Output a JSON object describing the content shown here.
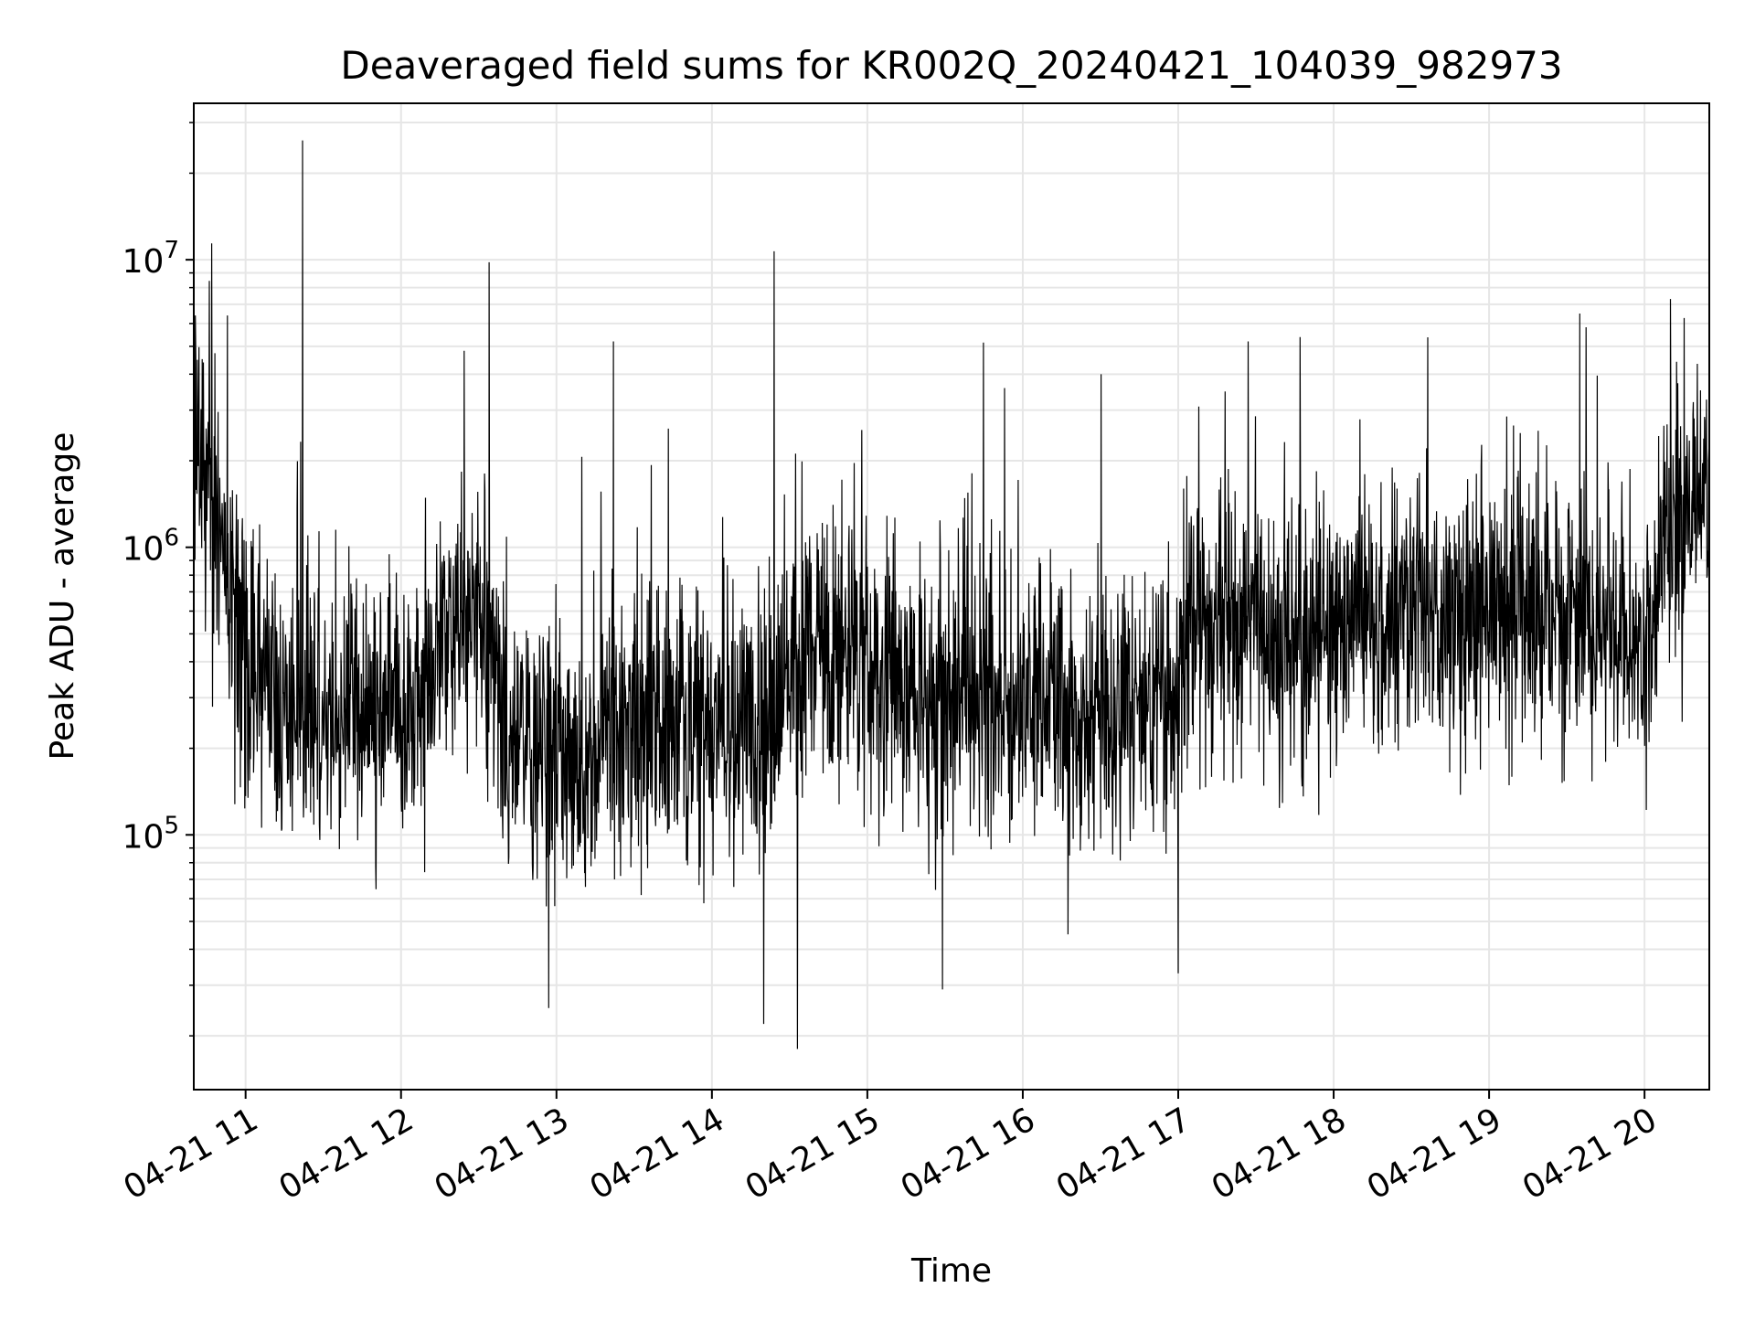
{
  "chart_data": {
    "type": "line",
    "title": "Deaveraged field sums for KR002Q_20240421_104039_982973",
    "xlabel": "Time",
    "ylabel": "Peak ADU - average",
    "yscale": "log",
    "ylim": [
      13000,
      35000000
    ],
    "xlim": [
      "2024-04-21 10:40",
      "2024-04-21 20:25"
    ],
    "x_ticks": [
      {
        "value": "2024-04-21 11:00",
        "label": "04-21 11"
      },
      {
        "value": "2024-04-21 12:00",
        "label": "04-21 12"
      },
      {
        "value": "2024-04-21 13:00",
        "label": "04-21 13"
      },
      {
        "value": "2024-04-21 14:00",
        "label": "04-21 14"
      },
      {
        "value": "2024-04-21 15:00",
        "label": "04-21 15"
      },
      {
        "value": "2024-04-21 16:00",
        "label": "04-21 16"
      },
      {
        "value": "2024-04-21 17:00",
        "label": "04-21 17"
      },
      {
        "value": "2024-04-21 18:00",
        "label": "04-21 18"
      },
      {
        "value": "2024-04-21 19:00",
        "label": "04-21 19"
      },
      {
        "value": "2024-04-21 20:00",
        "label": "04-21 20"
      }
    ],
    "y_ticks": [
      {
        "value": 100000,
        "base": "10",
        "exp": "5"
      },
      {
        "value": 1000000,
        "base": "10",
        "exp": "6"
      },
      {
        "value": 10000000,
        "base": "10",
        "exp": "7"
      }
    ],
    "grid": true,
    "line_color": "#000000",
    "series": [
      {
        "x": [
          "2024-04-21 10:40",
          "2024-04-21 10:45",
          "2024-04-21 10:50",
          "2024-04-21 10:55",
          "2024-04-21 11:00",
          "2024-04-21 11:10",
          "2024-04-21 11:20",
          "2024-04-21 11:30",
          "2024-04-21 11:40",
          "2024-04-21 11:50",
          "2024-04-21 12:00",
          "2024-04-21 12:10",
          "2024-04-21 12:20",
          "2024-04-21 12:30",
          "2024-04-21 12:40",
          "2024-04-21 12:50",
          "2024-04-21 13:00",
          "2024-04-21 13:10",
          "2024-04-21 13:20",
          "2024-04-21 13:30",
          "2024-04-21 13:40",
          "2024-04-21 13:50",
          "2024-04-21 14:00",
          "2024-04-21 14:10",
          "2024-04-21 14:20",
          "2024-04-21 14:30",
          "2024-04-21 14:40",
          "2024-04-21 14:50",
          "2024-04-21 15:00",
          "2024-04-21 15:10",
          "2024-04-21 15:20",
          "2024-04-21 15:30",
          "2024-04-21 15:40",
          "2024-04-21 15:50",
          "2024-04-21 16:00",
          "2024-04-21 16:10",
          "2024-04-21 16:20",
          "2024-04-21 16:30",
          "2024-04-21 16:40",
          "2024-04-21 16:50",
          "2024-04-21 17:00",
          "2024-04-21 17:10",
          "2024-04-21 17:20",
          "2024-04-21 17:30",
          "2024-04-21 17:40",
          "2024-04-21 17:50",
          "2024-04-21 18:00",
          "2024-04-21 18:10",
          "2024-04-21 18:20",
          "2024-04-21 18:30",
          "2024-04-21 18:40",
          "2024-04-21 18:50",
          "2024-04-21 19:00",
          "2024-04-21 19:10",
          "2024-04-21 19:20",
          "2024-04-21 19:30",
          "2024-04-21 19:40",
          "2024-04-21 19:50",
          "2024-04-21 20:00",
          "2024-04-21 20:10",
          "2024-04-21 20:20",
          "2024-04-21 20:25"
        ],
        "y": [
          1800000,
          1500000,
          1000000,
          600000,
          350000,
          300000,
          280000,
          260000,
          250000,
          260000,
          280000,
          300000,
          600000,
          700000,
          250000,
          180000,
          200000,
          180000,
          200000,
          220000,
          260000,
          250000,
          250000,
          230000,
          250000,
          350000,
          500000,
          450000,
          400000,
          350000,
          300000,
          300000,
          300000,
          280000,
          280000,
          280000,
          260000,
          250000,
          280000,
          300000,
          350000,
          550000,
          600000,
          550000,
          450000,
          450000,
          500000,
          550000,
          550000,
          600000,
          600000,
          550000,
          600000,
          650000,
          600000,
          600000,
          500000,
          500000,
          450000,
          1200000,
          1400000,
          1500000
        ]
      }
    ],
    "spikes": [
      {
        "x": "2024-04-21 11:22",
        "y": 26000000
      },
      {
        "x": "2024-04-21 12:34",
        "y": 9800000
      },
      {
        "x": "2024-04-21 14:24",
        "y": 10700000
      },
      {
        "x": "2024-04-21 20:10",
        "y": 7300000
      },
      {
        "x": "2024-04-21 10:53",
        "y": 6400000
      },
      {
        "x": "2024-04-21 19:35",
        "y": 6500000
      },
      {
        "x": "2024-04-21 17:27",
        "y": 5200000
      },
      {
        "x": "2024-04-21 13:22",
        "y": 5200000
      },
      {
        "x": "2024-04-21 14:33",
        "y": 18000
      },
      {
        "x": "2024-04-21 14:20",
        "y": 22000
      },
      {
        "x": "2024-04-21 12:57",
        "y": 25000
      },
      {
        "x": "2024-04-21 15:29",
        "y": 29000
      },
      {
        "x": "2024-04-21 17:00",
        "y": 33000
      }
    ]
  }
}
